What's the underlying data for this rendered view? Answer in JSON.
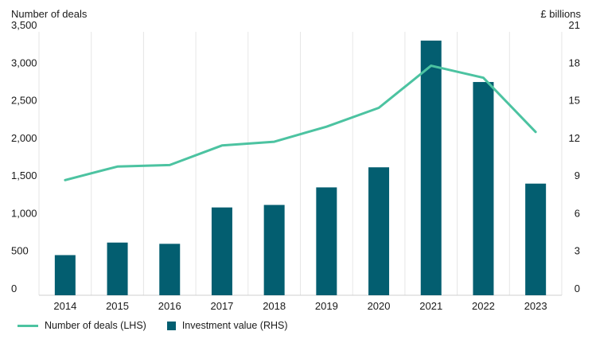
{
  "chart_data": {
    "type": "bar",
    "title": "",
    "categories": [
      "2014",
      "2015",
      "2016",
      "2017",
      "2018",
      "2019",
      "2020",
      "2021",
      "2022",
      "2023"
    ],
    "left_axis": {
      "label": "Number of deals",
      "ylim": [
        0,
        3500
      ],
      "ticks": [
        "0",
        "500",
        "1,000",
        "1,500",
        "2,000",
        "2,500",
        "3,000",
        "3,500"
      ],
      "tick_values": [
        0,
        500,
        1000,
        1500,
        2000,
        2500,
        3000,
        3500
      ]
    },
    "right_axis": {
      "label": "£ billions",
      "ylim": [
        0,
        21
      ],
      "ticks": [
        "0",
        "3",
        "6",
        "9",
        "12",
        "15",
        "18",
        "21"
      ],
      "tick_values": [
        0,
        3,
        6,
        9,
        12,
        15,
        18,
        21
      ]
    },
    "series": [
      {
        "name": "Number of deals (LHS)",
        "type": "line",
        "axis": "left",
        "color": "#4cc3a1",
        "values": [
          1530,
          1710,
          1730,
          1990,
          2040,
          2240,
          2490,
          3050,
          2890,
          2170
        ]
      },
      {
        "name": "Investment value (RHS)",
        "type": "bar",
        "axis": "right",
        "color": "#035e70",
        "values": [
          3.2,
          4.2,
          4.1,
          7.0,
          7.2,
          8.6,
          10.2,
          20.3,
          17.0,
          8.9
        ]
      }
    ],
    "grid": "vertical",
    "legend_position": "bottom-left"
  }
}
